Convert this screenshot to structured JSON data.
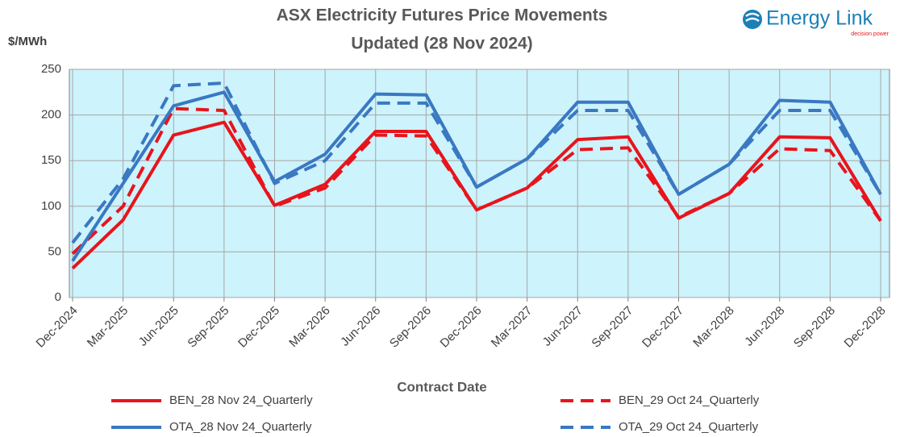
{
  "chart_data": {
    "type": "line",
    "title": "ASX Electricity Futures Price Movements",
    "subtitle": "Updated (28 Nov 2024)",
    "logo": "Energy Link",
    "logo_tagline": "decision power",
    "y_label": "$/MWh",
    "x_label": "Contract Date",
    "categories": [
      "Dec-2024",
      "Mar-2025",
      "Jun-2025",
      "Sep-2025",
      "Dec-2025",
      "Mar-2026",
      "Jun-2026",
      "Sep-2026",
      "Dec-2026",
      "Mar-2027",
      "Jun-2027",
      "Sep-2027",
      "Dec-2027",
      "Mar-2028",
      "Jun-2028",
      "Sep-2028",
      "Dec-2028"
    ],
    "series": [
      {
        "name": "BEN_28 Nov 24_Quarterly",
        "color": "#e8141c",
        "dashed": false,
        "values": [
          32,
          85,
          178,
          192,
          101,
          124,
          182,
          182,
          96,
          120,
          173,
          176,
          87,
          114,
          176,
          175,
          84
        ]
      },
      {
        "name": "BEN_29 Oct 24_Quarterly",
        "color": "#e8141c",
        "dashed": true,
        "values": [
          48,
          100,
          207,
          205,
          100,
          120,
          178,
          177,
          96,
          120,
          162,
          164,
          88,
          114,
          163,
          161,
          84
        ]
      },
      {
        "name": "OTA_28 Nov 24_Quarterly",
        "color": "#3a78c2",
        "dashed": false,
        "values": [
          40,
          125,
          210,
          225,
          127,
          157,
          223,
          222,
          121,
          152,
          214,
          214,
          113,
          146,
          216,
          214,
          113
        ]
      },
      {
        "name": "OTA_29 Oct 24_Quarterly",
        "color": "#3a78c2",
        "dashed": true,
        "values": [
          60,
          130,
          232,
          235,
          125,
          150,
          213,
          213,
          121,
          152,
          205,
          205,
          113,
          146,
          205,
          205,
          113
        ]
      }
    ],
    "ylim": [
      0,
      250
    ],
    "yticks": [
      0,
      50,
      100,
      150,
      200,
      250
    ],
    "grid": true,
    "background": "#cdf3fc"
  }
}
